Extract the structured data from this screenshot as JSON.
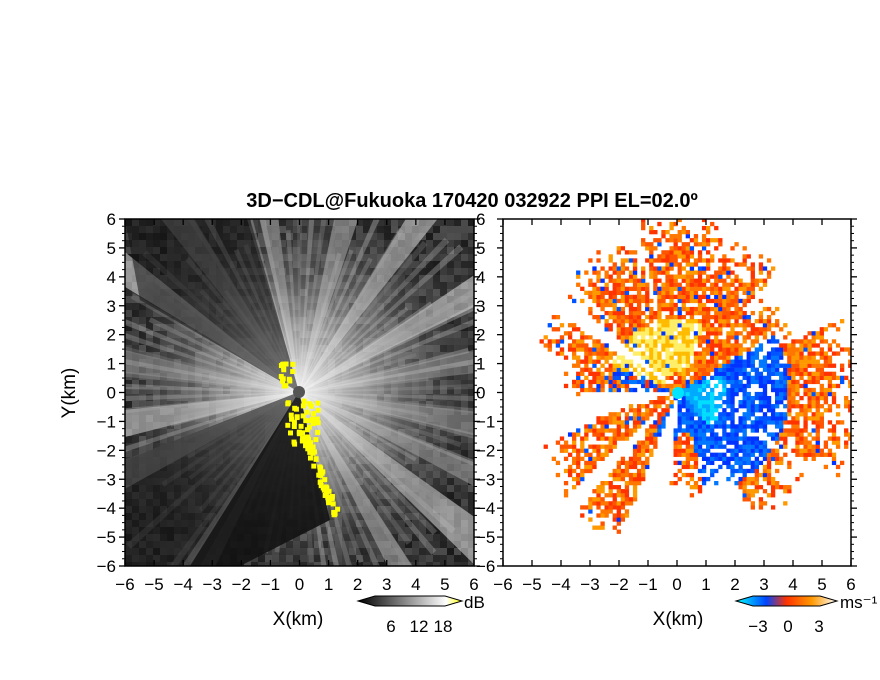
{
  "chart_data": [
    {
      "type": "heatmap",
      "panel": "reflectivity",
      "title": "3D−CDL@Fukuoka 170420 032922 PPI EL=02.0º",
      "xlabel": "X(km)",
      "ylabel": "Y(km)",
      "xlim": [
        -6,
        6
      ],
      "ylim": [
        -6,
        6
      ],
      "x_ticks": [
        "−6",
        "−5",
        "−4",
        "−3",
        "−2",
        "−1",
        "0",
        "1",
        "2",
        "3",
        "4",
        "5",
        "6"
      ],
      "y_ticks": [
        "6",
        "5",
        "4",
        "3",
        "2",
        "1",
        "0",
        "−1",
        "−2",
        "−3",
        "−4",
        "−5",
        "−6"
      ],
      "colorbar": {
        "unit": "dB",
        "ticks": [
          "6",
          "12",
          "18"
        ],
        "colors": [
          "#000000",
          "#ffffff",
          "#ffff00"
        ]
      },
      "features": [
        {
          "kind": "bright beams",
          "directions_deg_from_north": [
            -115,
            -100,
            -80,
            -55,
            -35,
            -10,
            15,
            35,
            60,
            80,
            100,
            115,
            130,
            150,
            -150
          ]
        },
        {
          "kind": "highlight zone",
          "color": "#ffff00",
          "region": "near origin and along south-southeast edge"
        }
      ]
    },
    {
      "type": "heatmap",
      "panel": "doppler velocity",
      "xlabel": "X(km)",
      "xlim": [
        -6,
        6
      ],
      "ylim": [
        -6,
        6
      ],
      "x_ticks": [
        "−6",
        "−5",
        "−4",
        "−3",
        "−2",
        "−1",
        "0",
        "1",
        "2",
        "3",
        "4",
        "5",
        "6"
      ],
      "y_ticks": [
        "6",
        "5",
        "4",
        "3",
        "2",
        "1",
        "0",
        "−1",
        "−2",
        "−3",
        "−4",
        "−5",
        "−6"
      ],
      "colorbar": {
        "unit": "ms⁻¹",
        "ticks": [
          "−3",
          "0",
          "3"
        ],
        "colors": [
          "#00ffff",
          "#0044ff",
          "#ff3300",
          "#ff9900",
          "#ffffff"
        ]
      },
      "features": [
        {
          "kind": "receding (warm) velocities",
          "color": "#ff8800",
          "region": "north and west sectors"
        },
        {
          "kind": "approaching (cool) velocities",
          "color": "#0044ff",
          "region": "east-southeast of origin"
        }
      ]
    }
  ]
}
